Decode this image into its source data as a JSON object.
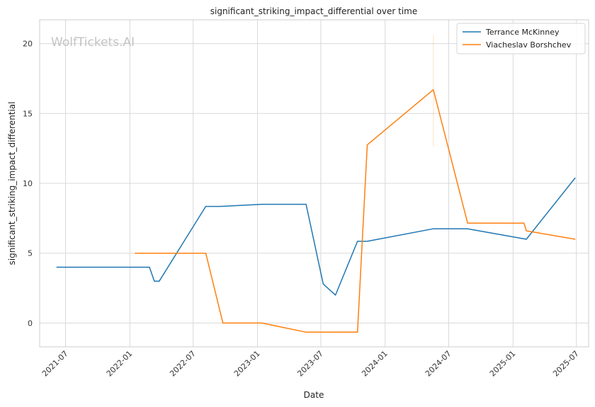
{
  "chart_data": {
    "type": "line",
    "title": "significant_striking_impact_differential over time",
    "xlabel": "Date",
    "ylabel": "significant_striking_impact_differential",
    "watermark": "WolfTickets.AI",
    "x_ticks": [
      "2021-07",
      "2022-01",
      "2022-07",
      "2023-01",
      "2023-07",
      "2024-01",
      "2024-07",
      "2025-01",
      "2025-07"
    ],
    "y_ticks": [
      0,
      5,
      10,
      15,
      20
    ],
    "xlim": [
      "2021-04-18",
      "2025-08-05"
    ],
    "ylim": [
      -1.7,
      21.7
    ],
    "grid": true,
    "legend_position": "top-right",
    "series": [
      {
        "name": "Terrance McKinney",
        "color": "#1f77b4",
        "points": [
          [
            "2021-06-05",
            4.0
          ],
          [
            "2022-02-26",
            4.0
          ],
          [
            "2022-03-12",
            3.0
          ],
          [
            "2022-03-26",
            3.0
          ],
          [
            "2022-08-06",
            8.35
          ],
          [
            "2022-09-17",
            8.35
          ],
          [
            "2023-01-14",
            8.5
          ],
          [
            "2023-05-20",
            8.5
          ],
          [
            "2023-07-08",
            2.8
          ],
          [
            "2023-08-12",
            2.0
          ],
          [
            "2023-10-14",
            5.85
          ],
          [
            "2023-11-11",
            5.85
          ],
          [
            "2024-05-18",
            6.75
          ],
          [
            "2024-08-24",
            6.75
          ],
          [
            "2025-02-08",
            6.0
          ],
          [
            "2025-06-28",
            10.4
          ]
        ]
      },
      {
        "name": "Viacheslav Borshchev",
        "color": "#ff7f0e",
        "points": [
          [
            "2022-01-15",
            5.0
          ],
          [
            "2022-08-06",
            5.0
          ],
          [
            "2022-09-24",
            0.0
          ],
          [
            "2023-01-14",
            0.0
          ],
          [
            "2023-05-20",
            -0.65
          ],
          [
            "2023-10-14",
            -0.65
          ],
          [
            "2023-11-11",
            12.75
          ],
          [
            "2024-05-18",
            16.7
          ],
          [
            "2024-08-24",
            7.15
          ],
          [
            "2025-02-01",
            7.15
          ],
          [
            "2025-02-08",
            6.6
          ],
          [
            "2025-06-28",
            6.0
          ]
        ]
      }
    ],
    "error_bars": [
      {
        "series": "Viacheslav Borshchev",
        "x": "2024-05-18",
        "low": 12.6,
        "high": 20.6
      }
    ]
  }
}
